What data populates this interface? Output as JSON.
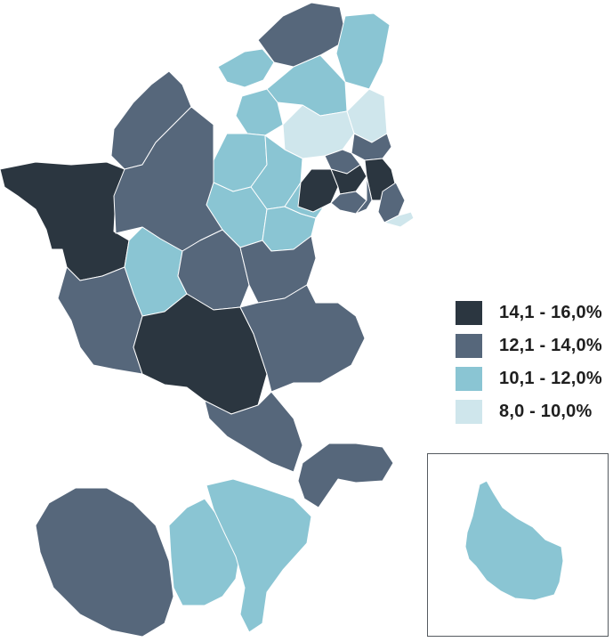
{
  "legend": {
    "items": [
      {
        "label": "14,1 - 16,0%",
        "color": "#2b3640"
      },
      {
        "label": "12,1 - 14,0%",
        "color": "#56677b"
      },
      {
        "label": "10,1 - 12,0%",
        "color": "#8ac5d3"
      },
      {
        "label": "8,0 - 10,0%",
        "color": "#cfe6ec"
      }
    ]
  },
  "colors": {
    "c1": "#2b3640",
    "c2": "#56677b",
    "c3": "#8ac5d3",
    "c4": "#cfe6ec",
    "border": "#ffffff",
    "inset_frame": "#555b60"
  }
}
